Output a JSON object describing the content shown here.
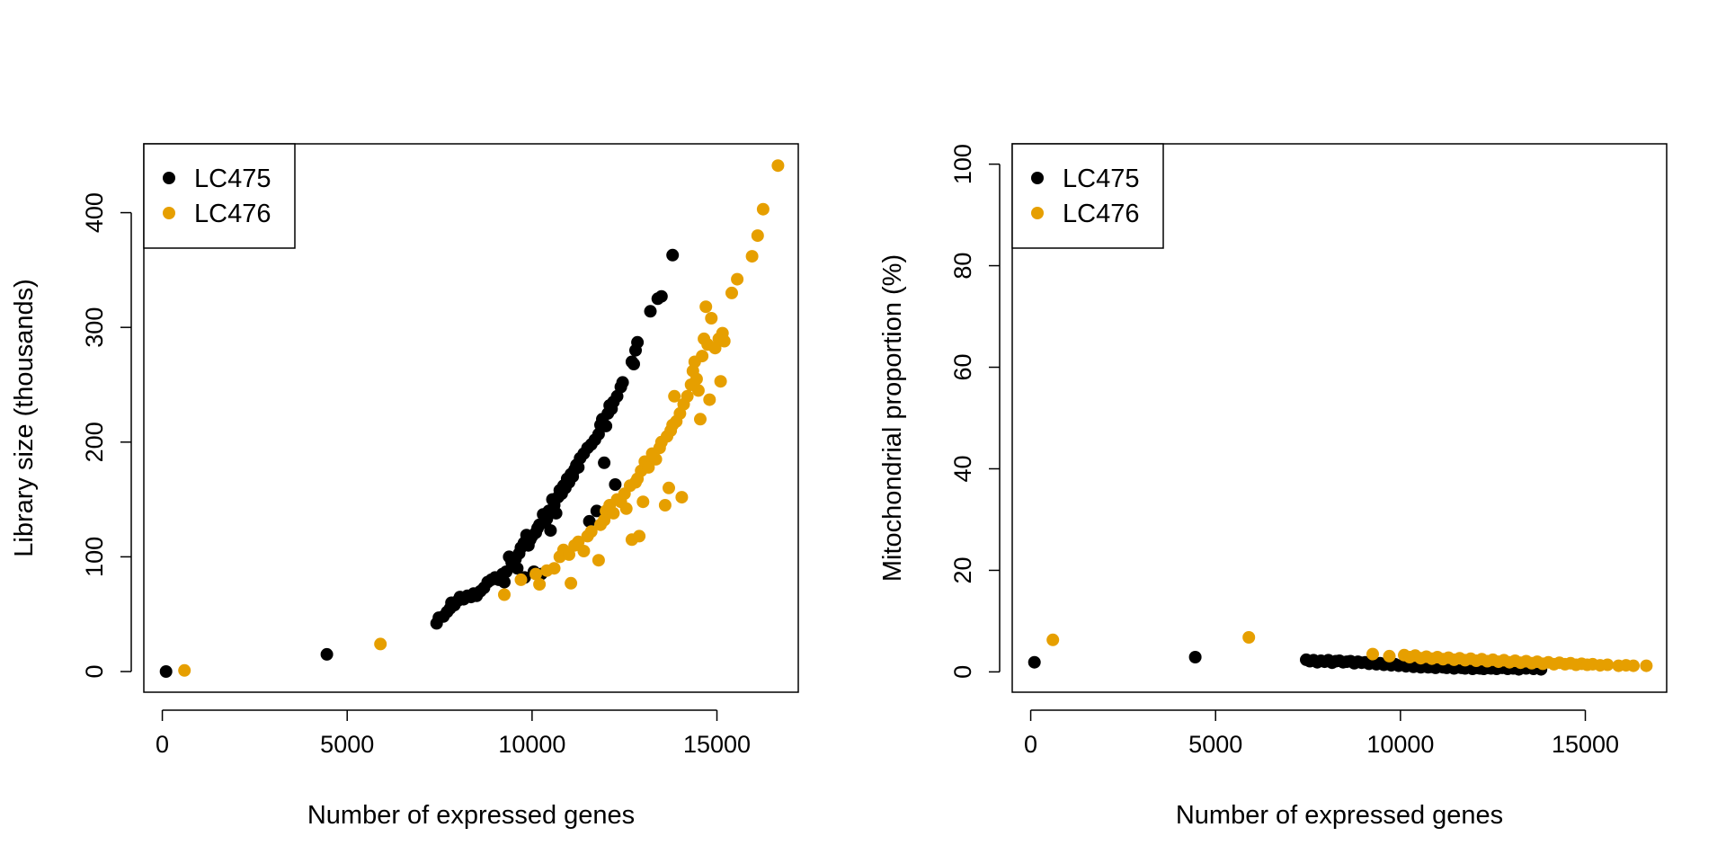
{
  "colors": {
    "LC475": "#000000",
    "LC476": "#E69F00"
  },
  "chart_data": [
    {
      "type": "scatter",
      "title": "",
      "xlabel": "Number of expressed genes",
      "ylabel": "Library size (thousands)",
      "xlim": [
        -500,
        17200
      ],
      "ylim": [
        -18,
        460
      ],
      "xticks": [
        0,
        5000,
        10000,
        15000
      ],
      "yticks": [
        0,
        100,
        200,
        300,
        400
      ],
      "legend": {
        "position": "top-left",
        "entries": [
          "LC475",
          "LC476"
        ]
      },
      "grid": false,
      "series": [
        {
          "name": "LC475",
          "color": "#000000",
          "points": [
            [
              100,
              0
            ],
            [
              4450,
              15
            ],
            [
              7420,
              42
            ],
            [
              7480,
              47
            ],
            [
              7600,
              48
            ],
            [
              7700,
              52
            ],
            [
              7780,
              55
            ],
            [
              7820,
              60
            ],
            [
              7900,
              58
            ],
            [
              8000,
              62
            ],
            [
              8050,
              65
            ],
            [
              8150,
              63
            ],
            [
              8250,
              66
            ],
            [
              8350,
              65
            ],
            [
              8420,
              68
            ],
            [
              8500,
              66
            ],
            [
              8600,
              70
            ],
            [
              8700,
              73
            ],
            [
              8800,
              78
            ],
            [
              8900,
              80
            ],
            [
              9000,
              82
            ],
            [
              9100,
              80
            ],
            [
              9200,
              85
            ],
            [
              9250,
              78
            ],
            [
              9300,
              87
            ],
            [
              9380,
              100
            ],
            [
              9450,
              95
            ],
            [
              9550,
              98
            ],
            [
              9600,
              90
            ],
            [
              9650,
              103
            ],
            [
              9700,
              108
            ],
            [
              9780,
              112
            ],
            [
              9800,
              82
            ],
            [
              9850,
              119
            ],
            [
              9900,
              110
            ],
            [
              9950,
              115
            ],
            [
              10000,
              118
            ],
            [
              10050,
              87
            ],
            [
              10100,
              121
            ],
            [
              10150,
              125
            ],
            [
              10200,
              128
            ],
            [
              10250,
              85
            ],
            [
              10300,
              137
            ],
            [
              10350,
              130
            ],
            [
              10400,
              133
            ],
            [
              10450,
              140
            ],
            [
              10500,
              123
            ],
            [
              10550,
              150
            ],
            [
              10600,
              145
            ],
            [
              10650,
              138
            ],
            [
              10700,
              152
            ],
            [
              10750,
              158
            ],
            [
              10800,
              155
            ],
            [
              10850,
              162
            ],
            [
              10900,
              160
            ],
            [
              10950,
              168
            ],
            [
              11000,
              165
            ],
            [
              11050,
              172
            ],
            [
              11100,
              170
            ],
            [
              11150,
              176
            ],
            [
              11200,
              180
            ],
            [
              11250,
              178
            ],
            [
              11300,
              186
            ],
            [
              11400,
              190
            ],
            [
              11500,
              195
            ],
            [
              11550,
              131
            ],
            [
              11600,
              198
            ],
            [
              11700,
              202
            ],
            [
              11750,
              140
            ],
            [
              11800,
              207
            ],
            [
              11850,
              215
            ],
            [
              11900,
              220
            ],
            [
              11950,
              182
            ],
            [
              12000,
              214
            ],
            [
              12050,
              225
            ],
            [
              12100,
              232
            ],
            [
              12150,
              229
            ],
            [
              12200,
              235
            ],
            [
              12250,
              163
            ],
            [
              12300,
              240
            ],
            [
              12400,
              248
            ],
            [
              12450,
              252
            ],
            [
              12700,
              270
            ],
            [
              12750,
              268
            ],
            [
              12800,
              280
            ],
            [
              12850,
              287
            ],
            [
              13200,
              314
            ],
            [
              13400,
              325
            ],
            [
              13500,
              327
            ],
            [
              13800,
              363
            ]
          ]
        },
        {
          "name": "LC476",
          "color": "#E69F00",
          "points": [
            [
              600,
              1
            ],
            [
              5900,
              24
            ],
            [
              9250,
              67
            ],
            [
              9700,
              80
            ],
            [
              10100,
              85
            ],
            [
              10200,
              76
            ],
            [
              10400,
              88
            ],
            [
              10600,
              90
            ],
            [
              10750,
              100
            ],
            [
              10850,
              106
            ],
            [
              11000,
              102
            ],
            [
              11050,
              77
            ],
            [
              11150,
              110
            ],
            [
              11250,
              113
            ],
            [
              11400,
              105
            ],
            [
              11500,
              118
            ],
            [
              11600,
              122
            ],
            [
              11800,
              97
            ],
            [
              11850,
              128
            ],
            [
              11950,
              132
            ],
            [
              12000,
              140
            ],
            [
              12100,
              145
            ],
            [
              12200,
              138
            ],
            [
              12300,
              150
            ],
            [
              12400,
              148
            ],
            [
              12500,
              155
            ],
            [
              12550,
              142
            ],
            [
              12650,
              162
            ],
            [
              12700,
              115
            ],
            [
              12800,
              165
            ],
            [
              12850,
              168
            ],
            [
              12900,
              118
            ],
            [
              12950,
              175
            ],
            [
              13000,
              148
            ],
            [
              13050,
              183
            ],
            [
              13150,
              178
            ],
            [
              13250,
              190
            ],
            [
              13350,
              185
            ],
            [
              13450,
              195
            ],
            [
              13500,
              200
            ],
            [
              13600,
              145
            ],
            [
              13650,
              205
            ],
            [
              13700,
              160
            ],
            [
              13750,
              210
            ],
            [
              13800,
              215
            ],
            [
              13850,
              240
            ],
            [
              13900,
              218
            ],
            [
              14000,
              225
            ],
            [
              14050,
              152
            ],
            [
              14100,
              233
            ],
            [
              14200,
              240
            ],
            [
              14300,
              250
            ],
            [
              14350,
              262
            ],
            [
              14400,
              270
            ],
            [
              14450,
              255
            ],
            [
              14500,
              245
            ],
            [
              14550,
              220
            ],
            [
              14600,
              275
            ],
            [
              14650,
              290
            ],
            [
              14700,
              318
            ],
            [
              14750,
              285
            ],
            [
              14800,
              237
            ],
            [
              14850,
              308
            ],
            [
              14950,
              282
            ],
            [
              15050,
              290
            ],
            [
              15100,
              253
            ],
            [
              15150,
              295
            ],
            [
              15200,
              288
            ],
            [
              15400,
              330
            ],
            [
              15550,
              342
            ],
            [
              15950,
              362
            ],
            [
              16100,
              380
            ],
            [
              16250,
              403
            ],
            [
              16650,
              441
            ]
          ]
        }
      ]
    },
    {
      "type": "scatter",
      "title": "",
      "xlabel": "Number of expressed genes",
      "ylabel": "Mitochondrial proportion (%)",
      "xlim": [
        -500,
        17200
      ],
      "ylim": [
        -4,
        104
      ],
      "xticks": [
        0,
        5000,
        10000,
        15000
      ],
      "yticks": [
        0,
        20,
        40,
        60,
        80,
        100
      ],
      "legend": {
        "position": "top-left",
        "entries": [
          "LC475",
          "LC476"
        ]
      },
      "grid": false,
      "series": [
        {
          "name": "LC475",
          "color": "#000000",
          "points": [
            [
              100,
              1.9
            ],
            [
              4450,
              2.9
            ],
            [
              7450,
              2.4
            ],
            [
              7550,
              2.1
            ],
            [
              7650,
              2.3
            ],
            [
              7750,
              1.9
            ],
            [
              7850,
              2.2
            ],
            [
              7950,
              2.0
            ],
            [
              8050,
              2.3
            ],
            [
              8150,
              1.8
            ],
            [
              8250,
              2.1
            ],
            [
              8350,
              2.2
            ],
            [
              8450,
              1.9
            ],
            [
              8550,
              2.0
            ],
            [
              8650,
              2.1
            ],
            [
              8750,
              1.7
            ],
            [
              8850,
              2.0
            ],
            [
              8950,
              1.8
            ],
            [
              9050,
              1.9
            ],
            [
              9150,
              1.6
            ],
            [
              9250,
              1.8
            ],
            [
              9350,
              1.5
            ],
            [
              9450,
              1.7
            ],
            [
              9550,
              1.4
            ],
            [
              9650,
              1.6
            ],
            [
              9750,
              1.3
            ],
            [
              9850,
              1.5
            ],
            [
              9950,
              1.2
            ],
            [
              10050,
              1.4
            ],
            [
              10150,
              1.1
            ],
            [
              10250,
              1.3
            ],
            [
              10350,
              1.0
            ],
            [
              10450,
              1.2
            ],
            [
              10550,
              0.9
            ],
            [
              10650,
              1.1
            ],
            [
              10750,
              0.9
            ],
            [
              10850,
              1.0
            ],
            [
              10950,
              0.8
            ],
            [
              11050,
              1.1
            ],
            [
              11150,
              0.9
            ],
            [
              11250,
              0.8
            ],
            [
              11350,
              1.0
            ],
            [
              11450,
              0.7
            ],
            [
              11550,
              0.9
            ],
            [
              11650,
              0.8
            ],
            [
              11750,
              0.7
            ],
            [
              11850,
              0.9
            ],
            [
              11950,
              0.6
            ],
            [
              12050,
              0.8
            ],
            [
              12150,
              0.7
            ],
            [
              12250,
              0.6
            ],
            [
              12350,
              0.8
            ],
            [
              12450,
              0.7
            ],
            [
              12600,
              0.6
            ],
            [
              12750,
              0.8
            ],
            [
              12900,
              0.6
            ],
            [
              13050,
              0.7
            ],
            [
              13200,
              0.5
            ],
            [
              13400,
              0.7
            ],
            [
              13600,
              0.6
            ],
            [
              13800,
              0.5
            ]
          ]
        },
        {
          "name": "LC476",
          "color": "#E69F00",
          "points": [
            [
              600,
              6.3
            ],
            [
              5900,
              6.8
            ],
            [
              9250,
              3.5
            ],
            [
              9700,
              3.1
            ],
            [
              10100,
              3.3
            ],
            [
              10250,
              2.9
            ],
            [
              10400,
              3.2
            ],
            [
              10550,
              2.7
            ],
            [
              10700,
              3.0
            ],
            [
              10850,
              2.6
            ],
            [
              11000,
              2.9
            ],
            [
              11150,
              2.5
            ],
            [
              11300,
              2.8
            ],
            [
              11450,
              2.4
            ],
            [
              11600,
              2.7
            ],
            [
              11750,
              2.3
            ],
            [
              11900,
              2.6
            ],
            [
              12050,
              2.2
            ],
            [
              12200,
              2.5
            ],
            [
              12350,
              2.1
            ],
            [
              12500,
              2.4
            ],
            [
              12650,
              2.0
            ],
            [
              12800,
              2.3
            ],
            [
              12950,
              1.9
            ],
            [
              13100,
              2.2
            ],
            [
              13250,
              1.8
            ],
            [
              13400,
              2.1
            ],
            [
              13550,
              1.7
            ],
            [
              13700,
              2.0
            ],
            [
              13850,
              1.6
            ],
            [
              14000,
              1.9
            ],
            [
              14150,
              1.5
            ],
            [
              14300,
              1.8
            ],
            [
              14450,
              1.5
            ],
            [
              14600,
              1.7
            ],
            [
              14750,
              1.4
            ],
            [
              14900,
              1.6
            ],
            [
              15050,
              1.4
            ],
            [
              15200,
              1.5
            ],
            [
              15400,
              1.3
            ],
            [
              15600,
              1.4
            ],
            [
              15900,
              1.2
            ],
            [
              16100,
              1.3
            ],
            [
              16300,
              1.2
            ],
            [
              16650,
              1.2
            ]
          ]
        }
      ]
    }
  ]
}
